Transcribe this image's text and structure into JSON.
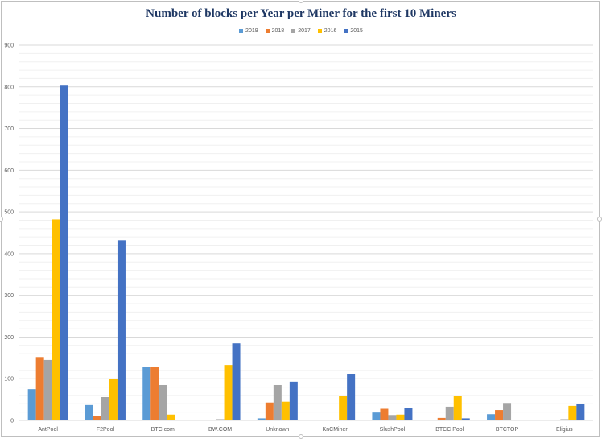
{
  "chart_data": {
    "type": "bar",
    "title": "Number of blocks per Year per Miner for the first 10 Miners",
    "categories": [
      "AntPool",
      "F2Pool",
      "BTC.com",
      "BW.COM",
      "Unknown",
      "KnCMiner",
      "SlushPool",
      "BTCC Pool",
      "BTCTOP",
      "Eligius"
    ],
    "series": [
      {
        "name": "2019",
        "color": "#5b9bd5",
        "values": [
          75,
          37,
          128,
          0,
          5,
          0,
          19,
          0,
          15,
          0
        ]
      },
      {
        "name": "2018",
        "color": "#ed7d31",
        "values": [
          152,
          10,
          128,
          0,
          43,
          0,
          28,
          6,
          25,
          0
        ]
      },
      {
        "name": "2017",
        "color": "#a5a5a5",
        "values": [
          145,
          56,
          85,
          3,
          85,
          0,
          13,
          33,
          42,
          3
        ]
      },
      {
        "name": "2016",
        "color": "#ffc000",
        "values": [
          482,
          100,
          14,
          133,
          45,
          58,
          14,
          58,
          0,
          35
        ]
      },
      {
        "name": "2015",
        "color": "#4472c4",
        "values": [
          803,
          432,
          0,
          185,
          93,
          112,
          29,
          5,
          0,
          39
        ]
      }
    ],
    "ylim": [
      0,
      900
    ],
    "yticks": [
      0,
      100,
      200,
      300,
      400,
      500,
      600,
      700,
      800,
      900
    ],
    "grid": true,
    "legend_position": "top"
  }
}
